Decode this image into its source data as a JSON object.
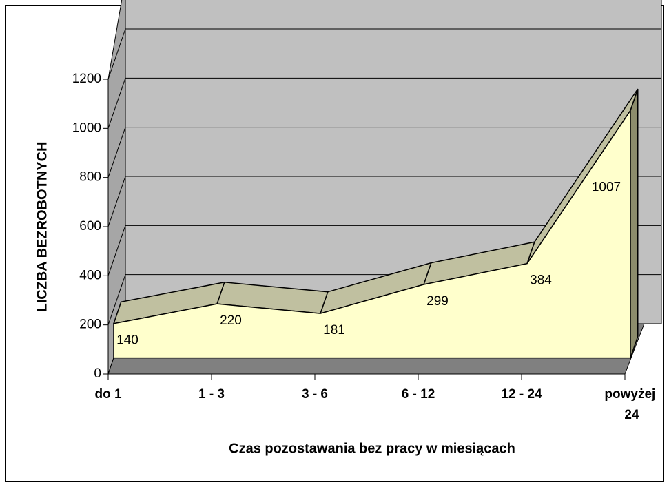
{
  "chart_data": {
    "type": "area3d",
    "categories": [
      "do 1",
      "1 - 3",
      "3 - 6",
      "6 - 12",
      "12 - 24",
      "powyżej 24"
    ],
    "values": [
      140,
      220,
      181,
      299,
      384,
      1007
    ],
    "ylim": [
      0,
      1200
    ],
    "yticks": [
      0,
      200,
      400,
      600,
      800,
      1000,
      1200
    ],
    "grid": true,
    "xlabel": "Czas pozostawania bez pracy w miesiącach",
    "ylabel": "LICZBA BEZROBOTNYCH",
    "colors": {
      "front": "#ffffcc",
      "top": "#c0c0a0",
      "side": "#8c8c6c",
      "wall": "#c0c0c0",
      "side_wall": "#a6a6a6",
      "floor": "#808080"
    }
  }
}
